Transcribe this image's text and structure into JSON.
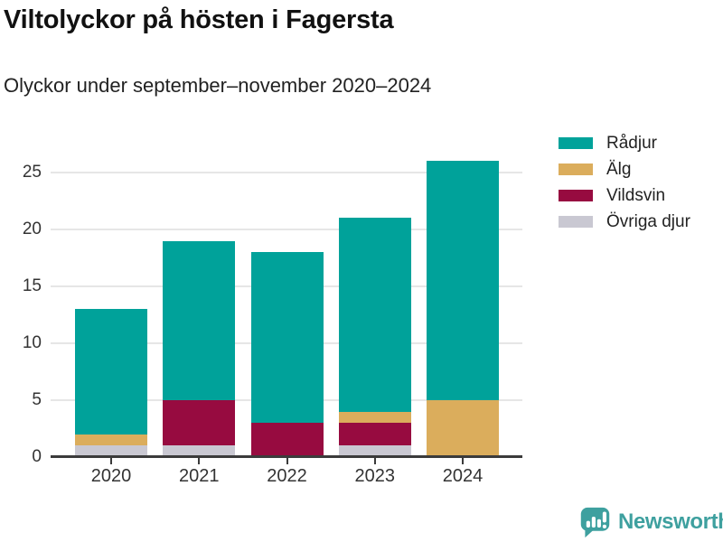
{
  "header": {
    "title": "Viltolyckor på hösten i Fagersta",
    "subtitle": "Olyckor under september–november 2020–2024"
  },
  "chart_data": {
    "type": "bar",
    "stacked": true,
    "title": "Viltolyckor på hösten i Fagersta",
    "subtitle": "Olyckor under september–november 2020–2024",
    "categories": [
      "2020",
      "2021",
      "2022",
      "2023",
      "2024"
    ],
    "series": [
      {
        "name": "Rådjur",
        "color": "#00A29A",
        "values": [
          11,
          14,
          15,
          17,
          21
        ]
      },
      {
        "name": "Älg",
        "color": "#DBAD5C",
        "values": [
          1,
          0,
          0,
          1,
          5
        ]
      },
      {
        "name": "Vildsvin",
        "color": "#970B40",
        "values": [
          0,
          4,
          3,
          2,
          0
        ]
      },
      {
        "name": "Övriga djur",
        "color": "#C9C8D2",
        "values": [
          1,
          1,
          0,
          1,
          0
        ]
      }
    ],
    "stack_order_bottom_to_top": [
      "Övriga djur",
      "Vildsvin",
      "Älg",
      "Rådjur"
    ],
    "y_ticks": [
      0,
      5,
      10,
      15,
      20,
      25
    ],
    "ylim": [
      0,
      26.5
    ],
    "xlabel": "",
    "ylabel": "",
    "grid": true,
    "legend_position": "top-right",
    "axis_color": "#3B3B3B",
    "grid_color": "#E6E6E6"
  },
  "footer": {
    "brand": "Newsworthy",
    "brand_color": "#3EA09F"
  }
}
